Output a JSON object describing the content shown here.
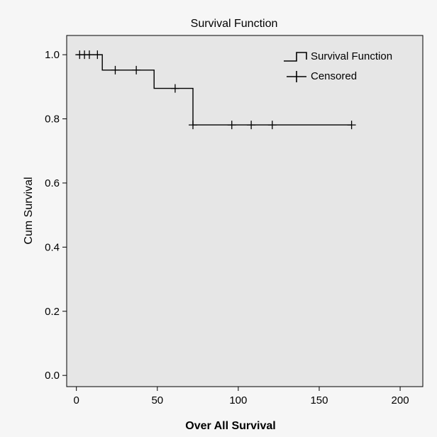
{
  "chart_data": {
    "type": "line",
    "subtype": "kaplan-meier-survival",
    "title": "Survival Function",
    "xlabel": "Over All Survival",
    "ylabel": "Cum Survival",
    "xlim": [
      -6,
      214
    ],
    "ylim": [
      -0.035,
      1.06
    ],
    "x_ticks": [
      0,
      50,
      100,
      150,
      200
    ],
    "y_ticks": [
      0.0,
      0.2,
      0.4,
      0.6,
      0.8,
      1.0
    ],
    "x_tick_labels": [
      "0",
      "50",
      "100",
      "150",
      "200"
    ],
    "y_tick_labels": [
      "0.0",
      "0.2",
      "0.4",
      "0.6",
      "0.8",
      "1.0"
    ],
    "grid": false,
    "background": "#e6e6e6",
    "line_color": "#000000",
    "legend": {
      "position": "top-right",
      "entries": [
        {
          "label": "Survival Function",
          "symbol": "step"
        },
        {
          "label": "Censored",
          "symbol": "plus"
        }
      ]
    },
    "series": [
      {
        "name": "Survival Function",
        "kind": "step",
        "x": [
          0,
          16,
          16,
          48,
          48,
          72,
          72,
          170
        ],
        "y": [
          1.0,
          1.0,
          0.952,
          0.952,
          0.895,
          0.895,
          0.781,
          0.781
        ]
      },
      {
        "name": "Censored",
        "kind": "markers",
        "points": [
          {
            "x": 2,
            "y": 1.0
          },
          {
            "x": 5,
            "y": 1.0
          },
          {
            "x": 8,
            "y": 1.0
          },
          {
            "x": 13,
            "y": 1.0
          },
          {
            "x": 24,
            "y": 0.952
          },
          {
            "x": 37,
            "y": 0.952
          },
          {
            "x": 61,
            "y": 0.895
          },
          {
            "x": 72,
            "y": 0.781
          },
          {
            "x": 96,
            "y": 0.781
          },
          {
            "x": 108,
            "y": 0.781
          },
          {
            "x": 121,
            "y": 0.781
          },
          {
            "x": 170,
            "y": 0.781
          }
        ]
      }
    ]
  }
}
